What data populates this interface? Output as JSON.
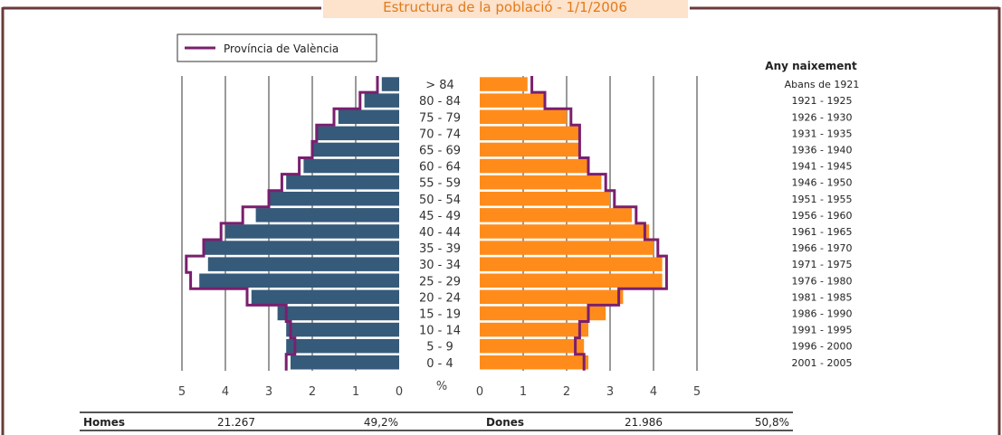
{
  "chart_data": {
    "type": "bar",
    "subtype": "population-pyramid",
    "title": "Estructura de la població - 1/1/2006",
    "legend": {
      "label": "Província de València",
      "placement": "top-left"
    },
    "age_groups": [
      "> 84",
      "80 - 84",
      "75 - 79",
      "70 - 74",
      "65 - 69",
      "60 - 64",
      "55 - 59",
      "50 - 54",
      "45 - 49",
      "40 - 44",
      "35 - 39",
      "30 - 34",
      "25 - 29",
      "20 - 24",
      "15 - 19",
      "10 - 14",
      "5 - 9",
      "0 - 4"
    ],
    "birth_years_title": "Any naixement",
    "birth_years": [
      "Abans de 1921",
      "1921 - 1925",
      "1926 - 1930",
      "1931 - 1935",
      "1936 - 1940",
      "1941 - 1945",
      "1946 - 1950",
      "1951 - 1955",
      "1956 - 1960",
      "1961 - 1965",
      "1966 - 1970",
      "1971 - 1975",
      "1976 - 1980",
      "1981 - 1985",
      "1986 - 1990",
      "1991 - 1995",
      "1996 - 2000",
      "2001 - 2005"
    ],
    "series": [
      {
        "name": "Homes",
        "side": "left",
        "color": "#365a7a",
        "values": [
          0.4,
          0.8,
          1.4,
          1.9,
          2.0,
          2.2,
          2.6,
          3.0,
          3.3,
          4.0,
          4.5,
          4.4,
          4.6,
          3.4,
          2.8,
          2.6,
          2.6,
          2.5
        ]
      },
      {
        "name": "Dones",
        "side": "right",
        "color": "#ff8c1a",
        "values": [
          1.1,
          1.5,
          2.0,
          2.3,
          2.3,
          2.5,
          2.8,
          3.0,
          3.5,
          3.9,
          4.0,
          4.2,
          4.2,
          3.3,
          2.9,
          2.5,
          2.4,
          2.5
        ]
      },
      {
        "name": "Província de València",
        "type": "line",
        "color": "#7a1f6e",
        "male": [
          0.5,
          0.9,
          1.5,
          1.9,
          2.0,
          2.3,
          2.7,
          3.0,
          3.6,
          4.1,
          4.5,
          4.9,
          4.8,
          3.5,
          2.6,
          2.5,
          2.4,
          2.6
        ],
        "female": [
          1.2,
          1.5,
          2.1,
          2.3,
          2.3,
          2.5,
          2.9,
          3.1,
          3.6,
          3.8,
          4.1,
          4.3,
          4.3,
          3.2,
          2.5,
          2.3,
          2.2,
          2.4
        ]
      }
    ],
    "x_axis": {
      "ticks_left": [
        5,
        4,
        3,
        2,
        1,
        0
      ],
      "ticks_right": [
        0,
        1,
        2,
        3,
        4,
        5
      ],
      "unit": "%",
      "xlim": [
        0,
        5
      ]
    },
    "grid": true
  },
  "summary": {
    "men_label": "Homes",
    "men_count": "21.267",
    "men_pct": "49,2%",
    "women_label": "Dones",
    "women_count": "21.986",
    "women_pct": "50,8%"
  },
  "colors": {
    "frame": "#6b3a3a",
    "title_bg": "#fde2cc",
    "title_text": "#e07b1a"
  }
}
